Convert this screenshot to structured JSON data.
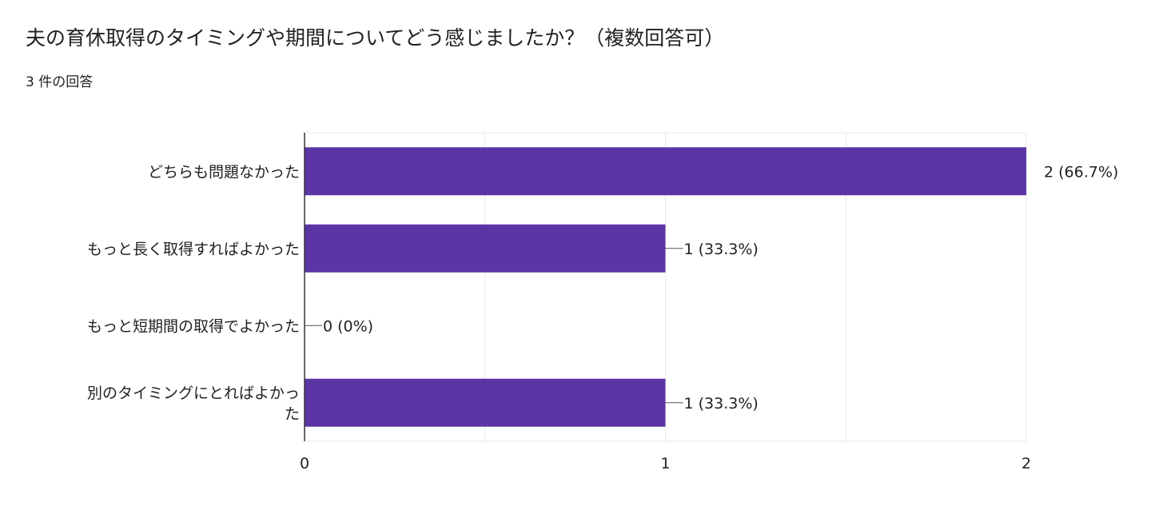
{
  "header": {
    "question": "夫の育休取得のタイミングや期間についてどう感じましたか？（複数回答可）",
    "response_count": "3 件の回答"
  },
  "colors": {
    "bar": "#5c35a4",
    "axis": "#333333",
    "grid": "#e8e8e8",
    "text": "#202124"
  },
  "chart_data": {
    "type": "bar",
    "orientation": "horizontal",
    "title": "",
    "xlabel": "",
    "ylabel": "",
    "xlim": [
      0,
      2
    ],
    "x_ticks": [
      0,
      1,
      2
    ],
    "grid": true,
    "categories": [
      [
        "どちらも問題なかった"
      ],
      [
        "もっと長く取得すればよかった"
      ],
      [
        "もっと短期間の取得でよかった"
      ],
      [
        "別のタイミングにとればよかっ",
        "た"
      ]
    ],
    "values": [
      2,
      1,
      0,
      1
    ],
    "data_labels": [
      "2 (66.7%)",
      "1 (33.3%)",
      "0 (0%)",
      "1 (33.3%)"
    ]
  }
}
